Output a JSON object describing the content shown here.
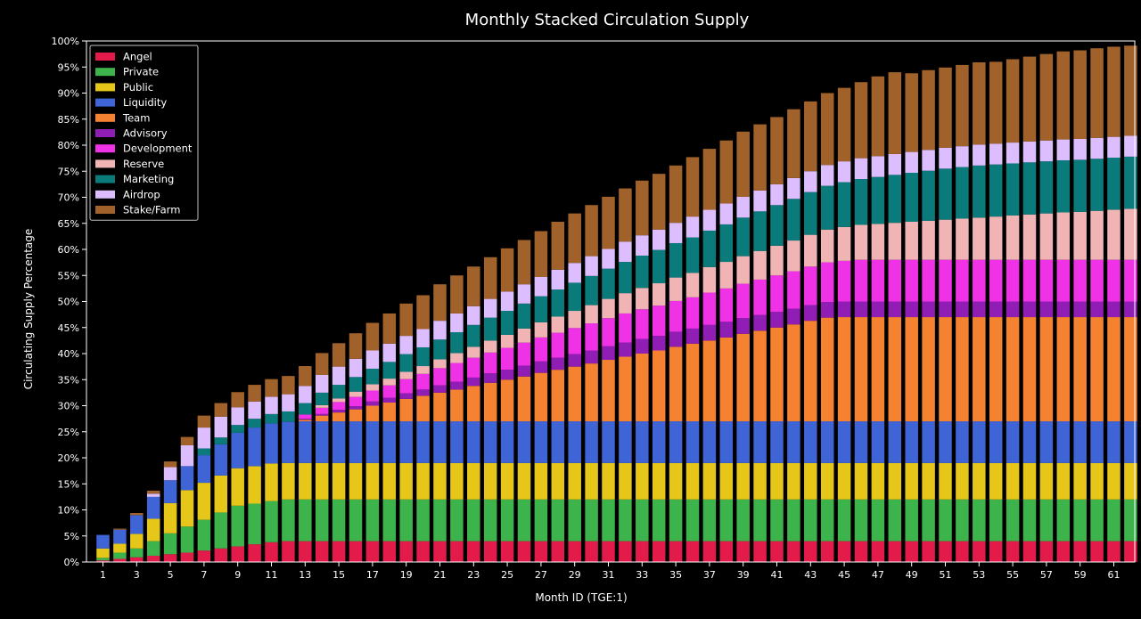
{
  "chart_data": {
    "type": "bar",
    "stacked": true,
    "title": "Monthly Stacked Circulation Supply",
    "xlabel": "Month ID (TGE:1)",
    "ylabel": "Circulating Supply Percentage",
    "x": [
      1,
      2,
      3,
      4,
      5,
      6,
      7,
      8,
      9,
      10,
      11,
      12,
      13,
      14,
      15,
      16,
      17,
      18,
      19,
      20,
      21,
      22,
      23,
      24,
      25,
      26,
      27,
      28,
      29,
      30,
      31,
      32,
      33,
      34,
      35,
      36,
      37,
      38,
      39,
      40,
      41,
      42,
      43,
      44,
      45,
      46,
      47,
      48,
      49,
      50,
      51,
      52,
      53,
      54,
      55,
      56,
      57,
      58,
      59,
      60,
      61,
      62
    ],
    "x_tick_labels": [
      "1",
      "3",
      "5",
      "7",
      "9",
      "11",
      "13",
      "15",
      "17",
      "19",
      "21",
      "23",
      "25",
      "27",
      "29",
      "31",
      "33",
      "35",
      "37",
      "39",
      "41",
      "43",
      "45",
      "47",
      "49",
      "51",
      "53",
      "55",
      "57",
      "59",
      "61"
    ],
    "ylim": [
      0,
      100
    ],
    "y_ticks": [
      0,
      5,
      10,
      15,
      20,
      25,
      30,
      35,
      40,
      45,
      50,
      55,
      60,
      65,
      70,
      75,
      80,
      85,
      90,
      95,
      100
    ],
    "y_tick_labels": [
      "0%",
      "5%",
      "10%",
      "15%",
      "20%",
      "25%",
      "30%",
      "35%",
      "40%",
      "45%",
      "50%",
      "55%",
      "60%",
      "65%",
      "70%",
      "75%",
      "80%",
      "85%",
      "90%",
      "95%",
      "100%"
    ],
    "legend_position": "top-left",
    "series": [
      {
        "name": "Angel",
        "color": "#e31b4b",
        "values": [
          0.3,
          0.6,
          0.9,
          1.2,
          1.5,
          1.8,
          2.2,
          2.6,
          3.0,
          3.4,
          3.8,
          4,
          4,
          4,
          4,
          4,
          4,
          4,
          4,
          4,
          4,
          4,
          4,
          4,
          4,
          4,
          4,
          4,
          4,
          4,
          4,
          4,
          4,
          4,
          4,
          4,
          4,
          4,
          4,
          4,
          4,
          4,
          4,
          4,
          4,
          4,
          4,
          4,
          4,
          4,
          4,
          4,
          4,
          4,
          4,
          4,
          4,
          4,
          4,
          4,
          4,
          4
        ]
      },
      {
        "name": "Private",
        "color": "#3cb44b",
        "values": [
          0.5,
          1.2,
          1.7,
          2.8,
          4.0,
          5.0,
          5.9,
          6.9,
          7.8,
          7.8,
          7.9,
          8,
          8,
          8,
          8,
          8,
          8,
          8,
          8,
          8,
          8,
          8,
          8,
          8,
          8,
          8,
          8,
          8,
          8,
          8,
          8,
          8,
          8,
          8,
          8,
          8,
          8,
          8,
          8,
          8,
          8,
          8,
          8,
          8,
          8,
          8,
          8,
          8,
          8,
          8,
          8,
          8,
          8,
          8,
          8,
          8,
          8,
          8,
          8,
          8,
          8,
          8
        ]
      },
      {
        "name": "Public",
        "color": "#e6c619",
        "values": [
          1.8,
          1.7,
          2.8,
          4.3,
          5.8,
          7.0,
          7.1,
          7.1,
          7.2,
          7.2,
          7.2,
          7,
          7,
          7,
          7,
          7,
          7,
          7,
          7,
          7,
          7,
          7,
          7,
          7,
          7,
          7,
          7,
          7,
          7,
          7,
          7,
          7,
          7,
          7,
          7,
          7,
          7,
          7,
          7,
          7,
          7,
          7,
          7,
          7,
          7,
          7,
          7,
          7,
          7,
          7,
          7,
          7,
          7,
          7,
          7,
          7,
          7,
          7,
          7,
          7,
          7,
          7
        ]
      },
      {
        "name": "Liquidity",
        "color": "#3e64d6",
        "values": [
          2.6,
          2.7,
          3.6,
          4.2,
          4.4,
          4.6,
          5.3,
          6.0,
          6.8,
          7.4,
          7.7,
          7.9,
          8,
          8,
          8,
          8,
          8,
          8,
          8,
          8,
          8,
          8,
          8,
          8,
          8,
          8,
          8,
          8,
          8,
          8,
          8,
          8,
          8,
          8,
          8,
          8,
          8,
          8,
          8,
          8,
          8,
          8,
          8,
          8,
          8,
          8,
          8,
          8,
          8,
          8,
          8,
          8,
          8,
          8,
          8,
          8,
          8,
          8,
          8,
          8,
          8,
          8
        ]
      },
      {
        "name": "Team",
        "color": "#f58231",
        "values": [
          0,
          0,
          0,
          0,
          0,
          0,
          0,
          0,
          0,
          0,
          0,
          0,
          0.3,
          1.1,
          1.7,
          2.3,
          3.0,
          3.6,
          4.3,
          4.9,
          5.5,
          6.1,
          6.8,
          7.4,
          8.0,
          8.6,
          9.3,
          9.9,
          10.5,
          11.1,
          11.8,
          12.4,
          13.0,
          13.6,
          14.3,
          14.9,
          15.5,
          16.1,
          16.8,
          17.4,
          18.0,
          18.6,
          19.3,
          19.9,
          20,
          20,
          20,
          20,
          20,
          20,
          20,
          20,
          20,
          20,
          20,
          20,
          20,
          20,
          20,
          20,
          20,
          20
        ]
      },
      {
        "name": "Advisory",
        "color": "#911eb4",
        "values": [
          0,
          0,
          0,
          0,
          0,
          0,
          0,
          0,
          0,
          0,
          0,
          0,
          0.2,
          0.3,
          0.5,
          0.6,
          0.8,
          0.9,
          1.1,
          1.2,
          1.4,
          1.5,
          1.6,
          1.8,
          1.9,
          2.1,
          2.2,
          2.3,
          2.4,
          2.5,
          2.6,
          2.7,
          2.8,
          2.8,
          2.9,
          2.9,
          3.0,
          3.0,
          3.0,
          3.0,
          3.0,
          3.0,
          3.0,
          3.0,
          3.0,
          3.0,
          3,
          3,
          3,
          3,
          3,
          3,
          3,
          3,
          3,
          3,
          3,
          3,
          3,
          3,
          3,
          3
        ]
      },
      {
        "name": "Development",
        "color": "#f032e6",
        "values": [
          0,
          0,
          0,
          0,
          0,
          0,
          0,
          0,
          0,
          0,
          0,
          0,
          0.8,
          1.2,
          1.5,
          1.8,
          2.1,
          2.4,
          2.7,
          3.0,
          3.3,
          3.6,
          3.8,
          4.0,
          4.2,
          4.4,
          4.6,
          4.8,
          5.0,
          5.2,
          5.4,
          5.6,
          5.7,
          5.8,
          5.9,
          6.0,
          6.2,
          6.4,
          6.6,
          6.8,
          7.0,
          7.2,
          7.4,
          7.6,
          7.8,
          8,
          8,
          8,
          8,
          8,
          8,
          8,
          8,
          8,
          8,
          8,
          8,
          8,
          8,
          8,
          8,
          8
        ]
      },
      {
        "name": "Reserve",
        "color": "#f0b4b4",
        "values": [
          0,
          0,
          0,
          0,
          0,
          0,
          0,
          0,
          0,
          0,
          0,
          0,
          0,
          0.5,
          0.7,
          1.0,
          1.2,
          1.3,
          1.4,
          1.5,
          1.7,
          1.9,
          2.1,
          2.3,
          2.5,
          2.7,
          2.9,
          3.1,
          3.3,
          3.5,
          3.7,
          3.9,
          4.1,
          4.3,
          4.5,
          4.7,
          4.9,
          5.1,
          5.3,
          5.5,
          5.7,
          5.9,
          6.1,
          6.3,
          6.5,
          6.7,
          6.9,
          7.1,
          7.3,
          7.5,
          7.7,
          7.9,
          8.1,
          8.3,
          8.5,
          8.7,
          8.9,
          9.1,
          9.2,
          9.4,
          9.6,
          9.8
        ]
      },
      {
        "name": "Marketing",
        "color": "#0a7a7a",
        "values": [
          0,
          0,
          0,
          0,
          0,
          0,
          1.3,
          1.3,
          1.5,
          1.7,
          1.8,
          2.0,
          2.2,
          2.4,
          2.6,
          2.8,
          3.0,
          3.2,
          3.4,
          3.6,
          3.8,
          4.0,
          4.2,
          4.4,
          4.6,
          4.8,
          5.0,
          5.2,
          5.4,
          5.6,
          5.8,
          6.0,
          6.2,
          6.4,
          6.6,
          6.8,
          7.0,
          7.2,
          7.4,
          7.6,
          7.8,
          8.0,
          8.2,
          8.4,
          8.6,
          8.8,
          9.0,
          9.2,
          9.4,
          9.6,
          9.8,
          9.9,
          10,
          10,
          10,
          10,
          10,
          10,
          10,
          10,
          10,
          10
        ]
      },
      {
        "name": "Airdrop",
        "color": "#dcbeff",
        "values": [
          0,
          0,
          0,
          0.6,
          2.5,
          4.0,
          4.0,
          4.0,
          3.4,
          3.3,
          3.3,
          3.3,
          3.3,
          3.4,
          3.5,
          3.5,
          3.5,
          3.5,
          3.5,
          3.5,
          3.6,
          3.6,
          3.6,
          3.6,
          3.7,
          3.7,
          3.7,
          3.8,
          3.8,
          3.8,
          3.8,
          3.9,
          3.9,
          3.9,
          3.9,
          4.0,
          4.0,
          4.0,
          4.0,
          4.0,
          4.0,
          4.0,
          4.0,
          4.0,
          4.0,
          4.0,
          4.0,
          4,
          4,
          4,
          4,
          4,
          4,
          4,
          4,
          4,
          4,
          4,
          4,
          4,
          4,
          4
        ]
      },
      {
        "name": "Stake/Farm",
        "color": "#a0622a",
        "values": [
          0,
          0.2,
          0.4,
          0.6,
          1.1,
          1.6,
          2.3,
          2.6,
          2.9,
          3.2,
          3.4,
          3.5,
          3.8,
          4.2,
          4.5,
          4.9,
          5.3,
          5.8,
          6.2,
          6.5,
          7.0,
          7.3,
          7.6,
          8.0,
          8.3,
          8.5,
          8.8,
          9.2,
          9.5,
          9.8,
          10.0,
          10.2,
          10.5,
          10.7,
          11.0,
          11.4,
          11.7,
          12.1,
          12.5,
          12.7,
          12.9,
          13.2,
          13.4,
          13.8,
          14.1,
          14.6,
          15.3,
          15.7,
          15.1,
          15.3,
          15.4,
          15.6,
          15.8,
          15.7,
          16.0,
          16.3,
          16.6,
          16.9,
          17.0,
          17.2,
          17.3,
          17.3
        ]
      }
    ]
  }
}
